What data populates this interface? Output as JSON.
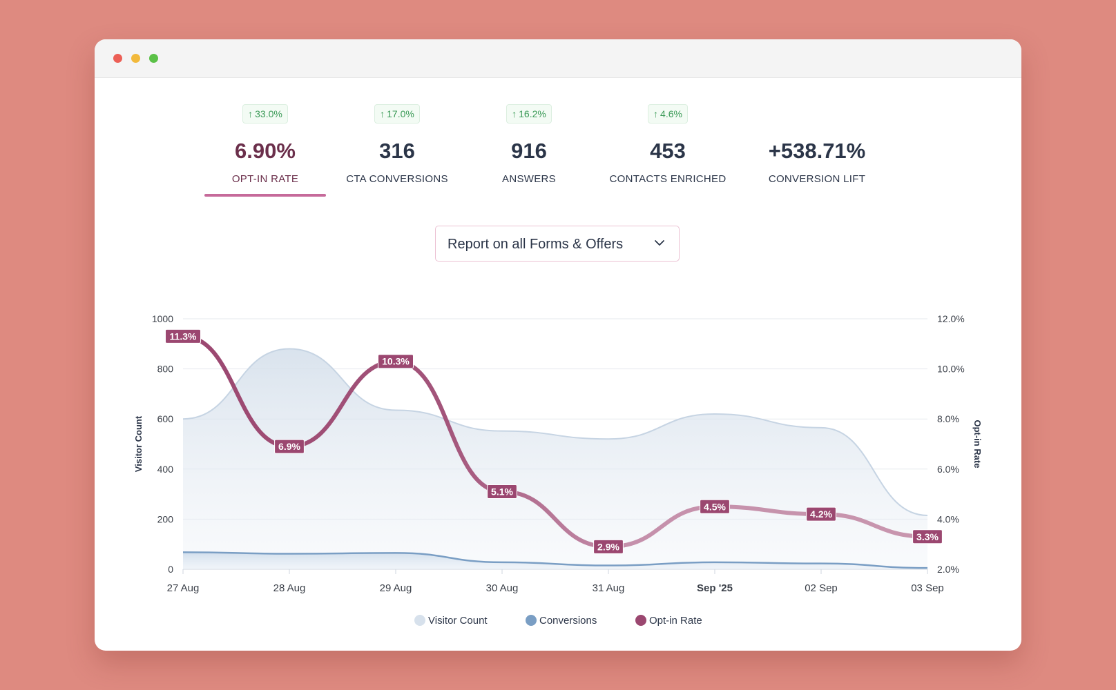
{
  "window": {
    "controls": [
      "close",
      "minimize",
      "zoom"
    ]
  },
  "metrics": [
    {
      "change": "33.0%",
      "value": "6.90%",
      "label": "OPT-IN RATE",
      "active": true
    },
    {
      "change": "17.0%",
      "value": "316",
      "label": "CTA CONVERSIONS",
      "active": false
    },
    {
      "change": "16.2%",
      "value": "916",
      "label": "ANSWERS",
      "active": false
    },
    {
      "change": "4.6%",
      "value": "453",
      "label": "CONTACTS ENRICHED",
      "active": false
    },
    {
      "change": null,
      "value": "+538.71%",
      "label": "CONVERSION LIFT",
      "active": false
    }
  ],
  "report_selector": {
    "selected": "Report on all Forms & Offers",
    "icon": "chevron-down-icon"
  },
  "colors": {
    "background": "#de8a80",
    "accent": "#9b4770",
    "visitor_fill": "#d7e1ec",
    "visitor_line": "#c6d4e3",
    "conversions": "#7a9ec4",
    "optin": "#9b4770",
    "badge_green": "#3b9a57"
  },
  "chart_data": {
    "type": "area",
    "categories": [
      "27 Aug",
      "28 Aug",
      "29 Aug",
      "30 Aug",
      "31 Aug",
      "Sep '25",
      "02 Sep",
      "03 Sep"
    ],
    "bold_categories": [
      "Sep '25"
    ],
    "y_left": {
      "label": "Visitor Count",
      "ticks": [
        "0",
        "200",
        "400",
        "600",
        "800",
        "1000"
      ],
      "min": 0,
      "max": 1000
    },
    "y_right": {
      "label": "Opt-in Rate",
      "ticks": [
        "2.0%",
        "4.0%",
        "6.0%",
        "8.0%",
        "10.0%",
        "12.0%"
      ],
      "min": 2,
      "max": 12
    },
    "grid": true,
    "series": [
      {
        "name": "Visitor Count",
        "axis": "left",
        "kind": "area",
        "values": [
          600,
          880,
          635,
          552,
          520,
          620,
          565,
          215
        ]
      },
      {
        "name": "Conversions",
        "axis": "left",
        "kind": "line",
        "values": [
          68,
          62,
          65,
          28,
          15,
          28,
          23,
          5
        ]
      },
      {
        "name": "Opt-in Rate",
        "axis": "right",
        "kind": "line",
        "values": [
          11.3,
          6.9,
          10.3,
          5.1,
          2.9,
          4.5,
          4.2,
          3.3
        ],
        "labels": [
          "11.3%",
          "6.9%",
          "10.3%",
          "5.1%",
          "2.9%",
          "4.5%",
          "4.2%",
          "3.3%"
        ]
      }
    ],
    "legend": {
      "position": "bottom-center",
      "items": [
        "Visitor Count",
        "Conversions",
        "Opt-in Rate"
      ]
    }
  }
}
